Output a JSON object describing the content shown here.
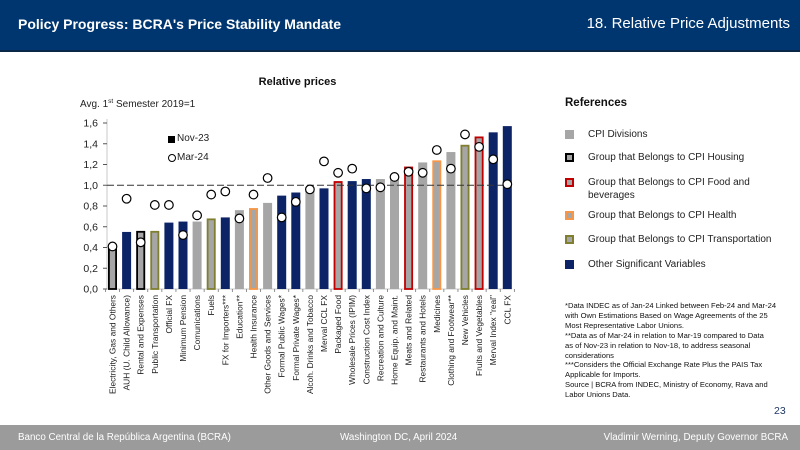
{
  "header": {
    "title": "Policy Progress: BCRA's Price Stability Mandate",
    "section": "18. Relative Price Adjustments"
  },
  "chart_data": {
    "type": "bar",
    "title": "Relative prices",
    "ylabel": "Avg. 1st Semester 2019=1",
    "ylabel_parts": {
      "pre": "Avg. 1",
      "sup": "st",
      "post": " Semester 2019=1"
    },
    "xlabel": "",
    "ylim": [
      0,
      1.6
    ],
    "yticks": [
      0,
      0.2,
      0.4,
      0.6,
      0.8,
      1.0,
      1.2,
      1.4,
      1.6
    ],
    "ytick_labels": [
      "0,0",
      "0,2",
      "0,4",
      "0,6",
      "0,8",
      "1,0",
      "1,2",
      "1,4",
      "1,6"
    ],
    "reference_line": 1.0,
    "grid": false,
    "legend_position": "top-left",
    "legend": [
      {
        "label": "Nov-23",
        "marker": "square"
      },
      {
        "label": "Mar-24",
        "marker": "circle"
      }
    ],
    "categories": [
      "Electricity, Gas and Others",
      "AUH (U. Child Allowance)",
      "Rental and Expenses",
      "Public Transportation",
      "Official FX",
      "Minimum Pension",
      "Comunications",
      "Fuels",
      "FX for Importers***",
      "Education**",
      "Health Insurance",
      "Other Goods and Services",
      "Formal Public Wages*",
      "Formal Private Wages*",
      "Alcoh. Drinks and Tobacco",
      "Merval CCL FX",
      "Packaged Food",
      "Wholesale Prices (IPIM)",
      "Construction Cost Index",
      "Recreation and Culture",
      "Home Equip. and Maint.",
      "Meats and Related",
      "Restaurants and Hotels",
      "Medicines",
      "Clothing and Footwear**",
      "New Vehicles",
      "Fruits and Vegetables",
      "Merval Index \"real\"",
      "CCL FX"
    ],
    "groups": [
      "housing",
      "other",
      "housing",
      "transport",
      "other",
      "other",
      "cpi",
      "transport",
      "other",
      "cpi",
      "health",
      "cpi",
      "other",
      "other",
      "cpi",
      "other",
      "food",
      "other",
      "other",
      "cpi",
      "cpi",
      "food",
      "cpi",
      "health",
      "cpi",
      "transport",
      "food",
      "other",
      "other"
    ],
    "series": [
      {
        "name": "Nov-23",
        "type": "bar",
        "values": [
          0.39,
          0.55,
          0.56,
          0.56,
          0.64,
          0.65,
          0.65,
          0.68,
          0.69,
          0.76,
          0.78,
          0.83,
          0.9,
          0.93,
          0.96,
          0.97,
          1.04,
          1.04,
          1.06,
          1.06,
          1.09,
          1.18,
          1.22,
          1.24,
          1.32,
          1.39,
          1.47,
          1.51,
          1.57
        ]
      },
      {
        "name": "Mar-24",
        "type": "marker",
        "values": [
          0.41,
          0.87,
          0.45,
          0.81,
          0.81,
          0.52,
          0.71,
          0.91,
          0.94,
          0.68,
          0.91,
          1.07,
          0.69,
          0.84,
          0.96,
          1.23,
          1.12,
          1.16,
          0.97,
          0.98,
          1.08,
          1.13,
          1.12,
          1.34,
          1.16,
          1.49,
          1.37,
          1.25,
          1.01
        ]
      }
    ]
  },
  "group_styles": {
    "cpi": {
      "fill": "#a6a6a6",
      "stroke": ""
    },
    "housing": {
      "fill": "#a6a6a6",
      "stroke": "#000000"
    },
    "food": {
      "fill": "#a6a6a6",
      "stroke": "#c00000"
    },
    "health": {
      "fill": "#a6a6a6",
      "stroke": "#f79646"
    },
    "transport": {
      "fill": "#a6a6a6",
      "stroke": "#7f7f2f"
    },
    "other": {
      "fill": "#0c2466",
      "stroke": ""
    }
  },
  "references": {
    "title": "References",
    "items": [
      {
        "label": "CPI Divisions",
        "group": "cpi"
      },
      {
        "label": "Group that Belongs to CPI Housing",
        "group": "housing"
      },
      {
        "label": "Group that Belongs to CPI Food and beverages",
        "group": "food"
      },
      {
        "label": "Group that Belongs to CPI Health",
        "group": "health"
      },
      {
        "label": "Group that Belongs to CPI Transportation",
        "group": "transport"
      },
      {
        "label": "Other Significant Variables",
        "group": "other"
      }
    ]
  },
  "footnotes": {
    "lines": [
      "*Data INDEC as of Jan-24 Linked between Feb-24 and Mar-24",
      "with Own Estimations Based on Wage Agreements of the 25",
      "Most Representative Labor Unions.",
      "**Data as of Mar-24 in relation to Mar-19 compared to Data",
      "as of Nov-23 in relation to Nov-18, to address seasonal",
      "considerations",
      "***Considers the Official Exchange Rate Plus the PAIS Tax",
      "Applicable for Imports.",
      "Source | BCRA from INDEC, Ministry of Economy, Rava and",
      "Labor Unions Data."
    ]
  },
  "page_number": "23",
  "footer": {
    "left": "Banco Central de la República Argentina (BCRA)",
    "center": "Washington DC, April 2024",
    "right": "Vladimir Werning, Deputy Governor BCRA"
  }
}
